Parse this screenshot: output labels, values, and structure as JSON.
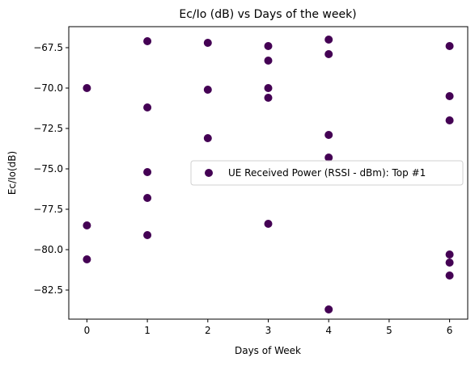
{
  "chart_data": {
    "type": "scatter",
    "title": "Ec/Io (dB) vs Days of the week)",
    "xlabel": "Days of Week",
    "ylabel": "Ec/Io(dB)",
    "xlim": [
      -0.3,
      6.3
    ],
    "ylim": [
      -84.3,
      -66.2
    ],
    "x_ticks": [
      0,
      1,
      2,
      3,
      4,
      5,
      6
    ],
    "y_ticks": [
      -82.5,
      -80.0,
      -77.5,
      -75.0,
      -72.5,
      -70.0,
      -67.5
    ],
    "x_tick_labels": [
      "0",
      "1",
      "2",
      "3",
      "4",
      "5",
      "6"
    ],
    "y_tick_labels": [
      "−82.5",
      "−80.0",
      "−77.5",
      "−75.0",
      "−72.5",
      "−70.0",
      "−67.5"
    ],
    "grid": false,
    "legend_position": "center-right",
    "series": [
      {
        "name": "UE Received Power (RSSI - dBm): Top #1",
        "color": "#440154",
        "points": [
          {
            "x": 0,
            "y": -70.0
          },
          {
            "x": 0,
            "y": -78.5
          },
          {
            "x": 0,
            "y": -80.6
          },
          {
            "x": 1,
            "y": -67.1
          },
          {
            "x": 1,
            "y": -71.2
          },
          {
            "x": 1,
            "y": -75.2
          },
          {
            "x": 1,
            "y": -76.8
          },
          {
            "x": 1,
            "y": -79.1
          },
          {
            "x": 2,
            "y": -67.2
          },
          {
            "x": 2,
            "y": -70.1
          },
          {
            "x": 2,
            "y": -73.1
          },
          {
            "x": 3,
            "y": -67.4
          },
          {
            "x": 3,
            "y": -68.3
          },
          {
            "x": 3,
            "y": -70.0
          },
          {
            "x": 3,
            "y": -70.6
          },
          {
            "x": 3,
            "y": -78.4
          },
          {
            "x": 4,
            "y": -67.0
          },
          {
            "x": 4,
            "y": -67.9
          },
          {
            "x": 4,
            "y": -72.9
          },
          {
            "x": 4,
            "y": -74.3
          },
          {
            "x": 4,
            "y": -83.7
          },
          {
            "x": 6,
            "y": -67.4
          },
          {
            "x": 6,
            "y": -70.5
          },
          {
            "x": 6,
            "y": -72.0
          },
          {
            "x": 6,
            "y": -80.3
          },
          {
            "x": 6,
            "y": -80.8
          },
          {
            "x": 6,
            "y": -81.6
          }
        ]
      }
    ]
  }
}
